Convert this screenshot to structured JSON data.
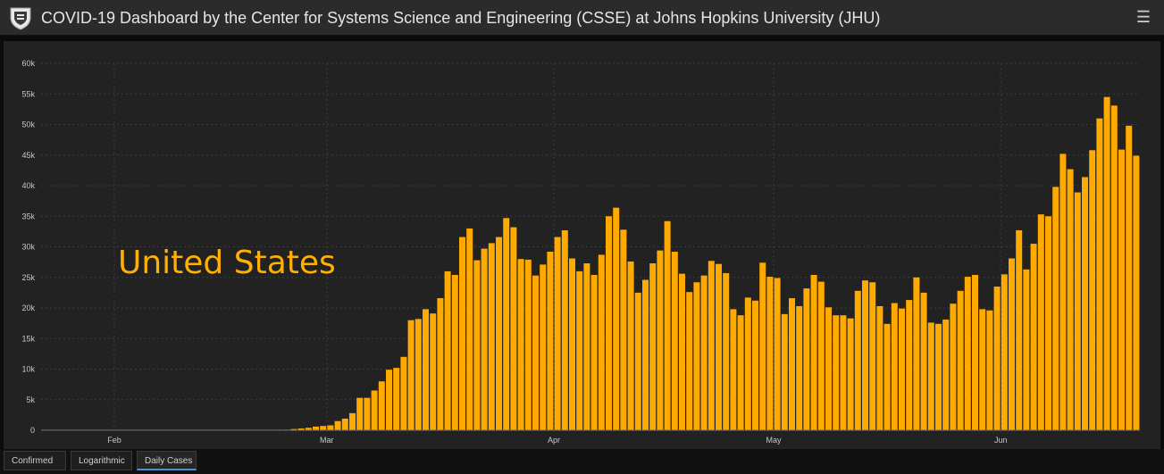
{
  "header": {
    "title": "COVID-19 Dashboard by the Center for Systems Science and Engineering (CSSE) at Johns Hopkins University (JHU)",
    "menu_icon": "hamburger-menu-icon",
    "logo_icon": "jhu-shield-icon"
  },
  "country_label": "United States",
  "colors": {
    "bar": "#ffaa00",
    "background": "#222222",
    "grid": "#3c3c3c",
    "label": "#c8c8c8"
  },
  "tabs": [
    {
      "label": "Confirmed",
      "active": false
    },
    {
      "label": "Logarithmic",
      "active": false
    },
    {
      "label": "Daily Cases",
      "active": true
    }
  ],
  "chart_data": {
    "type": "bar",
    "title": "",
    "xlabel": "",
    "ylabel": "",
    "ylim": [
      0,
      60000
    ],
    "y_ticks": [
      {
        "value": 0,
        "label": "0"
      },
      {
        "value": 5000,
        "label": "5k"
      },
      {
        "value": 10000,
        "label": "10k"
      },
      {
        "value": 15000,
        "label": "15k"
      },
      {
        "value": 20000,
        "label": "20k"
      },
      {
        "value": 25000,
        "label": "25k"
      },
      {
        "value": 30000,
        "label": "30k"
      },
      {
        "value": 35000,
        "label": "35k"
      },
      {
        "value": 40000,
        "label": "40k"
      },
      {
        "value": 45000,
        "label": "45k"
      },
      {
        "value": 50000,
        "label": "50k"
      },
      {
        "value": 55000,
        "label": "55k"
      },
      {
        "value": 60000,
        "label": "60k"
      }
    ],
    "x_ticks": [
      {
        "index": 10,
        "label": "Feb"
      },
      {
        "index": 39,
        "label": "Mar"
      },
      {
        "index": 70,
        "label": "Apr"
      },
      {
        "index": 100,
        "label": "May"
      },
      {
        "index": 131,
        "label": "Jun"
      }
    ],
    "x_gridlines_at_index": [
      10,
      39,
      70,
      100,
      131
    ],
    "grid": true,
    "values": [
      0,
      0,
      0,
      0,
      0,
      0,
      0,
      0,
      0,
      0,
      0,
      0,
      0,
      0,
      0,
      0,
      0,
      0,
      0,
      0,
      0,
      0,
      0,
      0,
      0,
      0,
      0,
      0,
      0,
      0,
      0,
      0,
      50,
      100,
      200,
      300,
      400,
      600,
      700,
      800,
      1500,
      1900,
      2800,
      5300,
      5300,
      6500,
      8000,
      9900,
      10200,
      12000,
      18000,
      18200,
      19800,
      19100,
      21600,
      26000,
      25400,
      31600,
      33000,
      27800,
      29700,
      30600,
      31600,
      34700,
      33200,
      28000,
      27900,
      25300,
      27100,
      29200,
      31600,
      32700,
      28100,
      26000,
      27300,
      25400,
      28700,
      35000,
      36400,
      32800,
      27600,
      22500,
      24600,
      27300,
      29400,
      34200,
      29200,
      25600,
      22600,
      24200,
      25300,
      27700,
      27200,
      25700,
      19800,
      18800,
      21700,
      21200,
      27400,
      25100,
      24900,
      19000,
      21600,
      20300,
      23200,
      25400,
      24300,
      20100,
      18800,
      18800,
      18300,
      22800,
      24500,
      24200,
      20300,
      17400,
      20800,
      19900,
      21300,
      25000,
      22500,
      17600,
      17400,
      18100,
      20700,
      22800,
      25100,
      25400,
      19800,
      19600,
      23500,
      25500,
      28100,
      32700,
      26300,
      30500,
      35300,
      35000,
      39800,
      45200,
      42700,
      38900,
      41400,
      45800,
      51000,
      54500,
      53100,
      45900,
      49800,
      44900
    ]
  }
}
